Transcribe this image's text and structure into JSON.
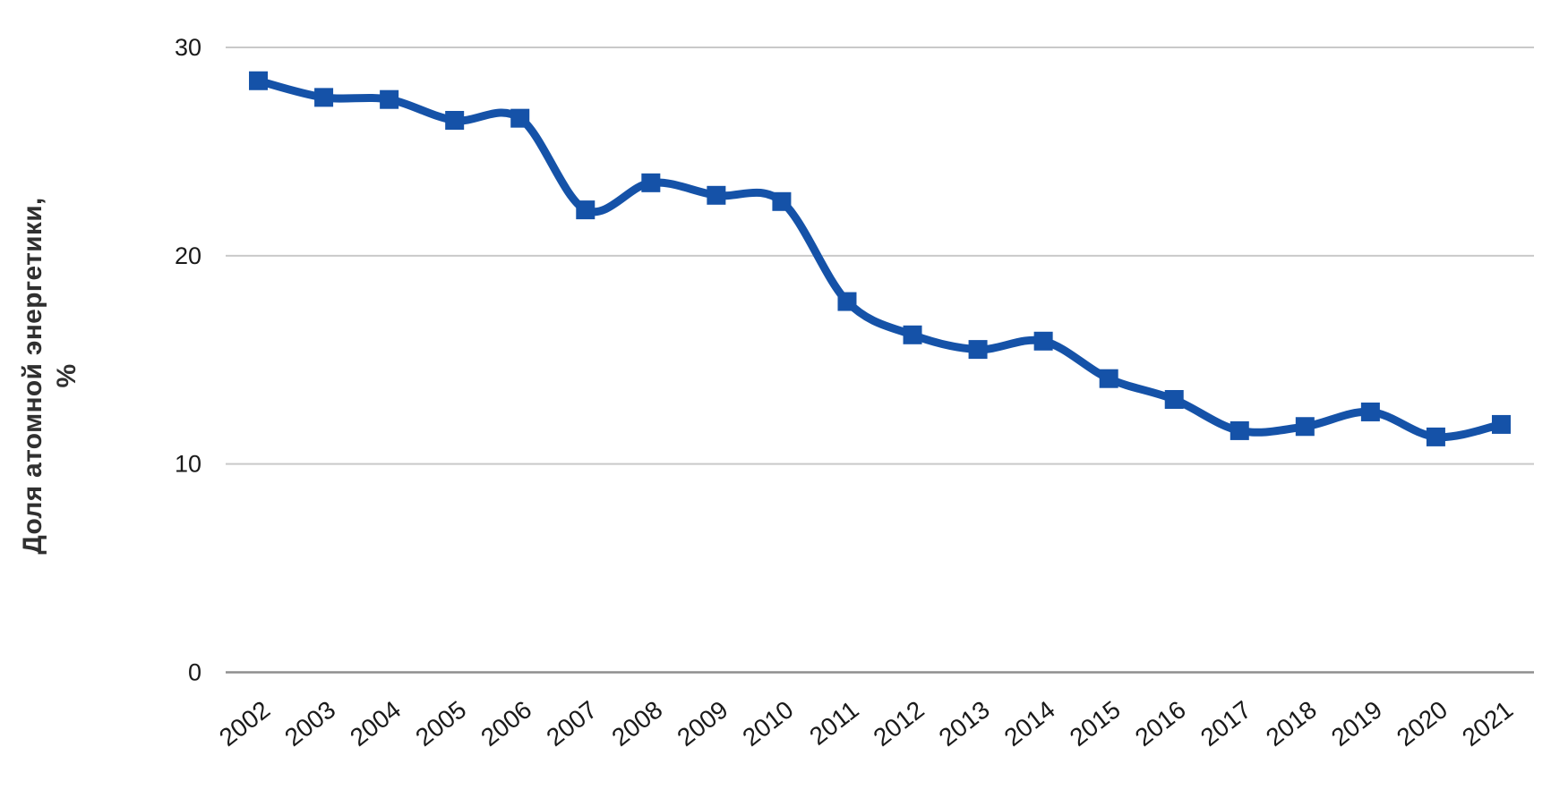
{
  "chart_data": {
    "type": "line",
    "title": "",
    "xlabel": "",
    "ylabel": "Доля атомной энергетики, %",
    "ylabel_lines": [
      "Доля атомной энергетики,",
      "%"
    ],
    "x": [
      "2002",
      "2003",
      "2004",
      "2005",
      "2006",
      "2007",
      "2008",
      "2009",
      "2010",
      "2011",
      "2012",
      "2013",
      "2014",
      "2015",
      "2016",
      "2017",
      "2018",
      "2019",
      "2020",
      "2021"
    ],
    "series": [
      {
        "name": "Доля атомной энергетики, %",
        "values": [
          28.4,
          27.6,
          27.5,
          26.5,
          26.6,
          22.2,
          23.5,
          22.9,
          22.6,
          17.8,
          16.2,
          15.5,
          15.9,
          14.1,
          13.1,
          11.6,
          11.8,
          12.5,
          11.3,
          11.9
        ]
      }
    ],
    "ylim": [
      0,
      30
    ],
    "yticks": [
      0,
      10,
      20,
      30
    ],
    "grid": true,
    "legend": "none",
    "line_color": "#1552a8",
    "marker": "square",
    "gridline_color": "#c9c9c9",
    "axis_color": "#8f8f8f",
    "tick_text_color": "#1a1a1a"
  }
}
